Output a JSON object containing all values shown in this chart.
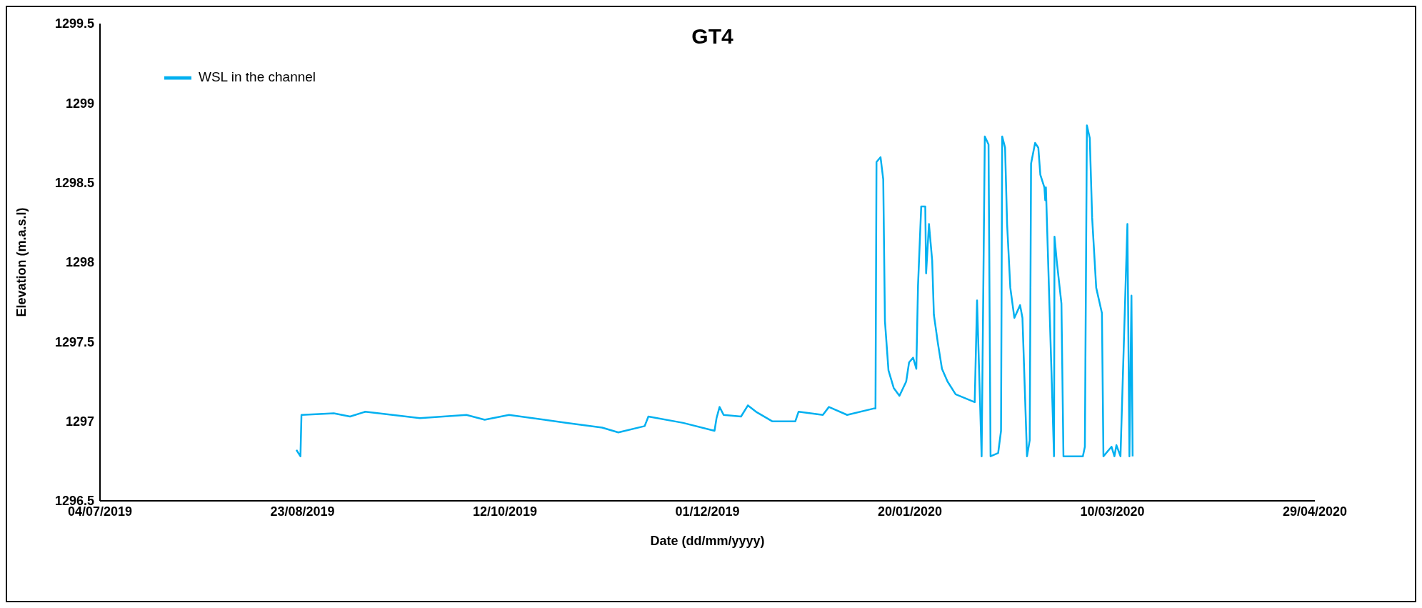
{
  "chart_data": {
    "type": "line",
    "title": "GT4",
    "xlabel": "Date (dd/mm/yyyy)",
    "ylabel": "Elevation (m.a.s.l)",
    "xlim": [
      "2019-07-04",
      "2020-04-29"
    ],
    "xticks": [
      {
        "value": "2019-07-04",
        "label": "04/07/2019"
      },
      {
        "value": "2019-08-23",
        "label": "23/08/2019"
      },
      {
        "value": "2019-10-12",
        "label": "12/10/2019"
      },
      {
        "value": "2019-12-01",
        "label": "01/12/2019"
      },
      {
        "value": "2020-01-20",
        "label": "20/01/2020"
      },
      {
        "value": "2020-03-10",
        "label": "10/03/2020"
      },
      {
        "value": "2020-04-29",
        "label": "29/04/2020"
      }
    ],
    "ylim": [
      1296.5,
      1299.5
    ],
    "yticks": [
      1296.5,
      1297,
      1297.5,
      1298,
      1298.5,
      1299,
      1299.5
    ],
    "grid": false,
    "legend": "top left",
    "marker": "none",
    "line_style": "solid",
    "series": [
      {
        "name": "WSL in the channel",
        "color": "#00b0f0",
        "x": [
          "2019-08-21T12:00",
          "2019-08-22T12:00",
          "2019-08-22T18:00",
          "2019-08-30T18:00",
          "2019-09-03T18:00",
          "2019-09-07T12:00",
          "2019-09-21",
          "2019-10-02T12:00",
          "2019-10-07",
          "2019-10-13",
          "2019-10-27T08:00",
          "2019-11-05",
          "2019-11-09",
          "2019-11-15T12:00",
          "2019-11-16T10:00",
          "2019-11-25",
          "2019-12-02T18:00",
          "2019-12-03T06:00",
          "2019-12-04",
          "2019-12-05",
          "2019-12-09T07:00",
          "2019-12-11",
          "2019-12-13",
          "2019-12-17",
          "2019-12-22T17:00",
          "2019-12-23T12:00",
          "2019-12-29T12:00",
          "2019-12-31",
          "2020-01-04T12:00",
          "2020-01-11",
          "2020-01-11T12:00",
          "2020-01-11T18:00",
          "2020-01-12T18:00",
          "2020-01-13T10:00",
          "2020-01-13T20:00",
          "2020-01-14T17:00",
          "2020-01-16",
          "2020-01-17T10:00",
          "2020-01-19T02:00",
          "2020-01-19T19:00",
          "2020-01-20T19:00",
          "2020-01-21T14:00",
          "2020-01-22",
          "2020-01-22T19:00",
          "2020-01-23T19:00",
          "2020-01-24",
          "2020-01-24T17:00",
          "2020-01-25T12:00",
          "2020-01-25T22:00",
          "2020-01-26T22:00",
          "2020-01-27T22:00",
          "2020-01-29T07:00",
          "2020-01-31T07:00",
          "2020-02-05",
          "2020-02-05T14:00",
          "2020-02-06T17:00",
          "2020-02-07T12:00",
          "2020-02-08T10:00",
          "2020-02-08T22:00",
          "2020-02-10T19:00",
          "2020-02-11T12:00",
          "2020-02-11T19:00",
          "2020-02-12T12:00",
          "2020-02-13",
          "2020-02-13T19:00",
          "2020-02-14T19:00",
          "2020-02-16T05:00",
          "2020-02-16T19:00",
          "2020-02-17T22:00",
          "2020-02-18T14:00",
          "2020-02-18T22:00",
          "2020-02-19T22:00",
          "2020-02-20T17:00",
          "2020-02-21T05:00",
          "2020-02-22T05:00",
          "2020-02-22T10:00",
          "2020-02-22T14:00",
          "2020-02-24T14:00",
          "2020-02-24T17:00",
          "2020-02-25T07:00",
          "2020-02-26T10:00",
          "2020-02-26T22:00",
          "2020-03-02T17:00",
          "2020-03-03T05:00",
          "2020-03-03T17:00",
          "2020-03-04T10:00",
          "2020-03-05",
          "2020-03-06",
          "2020-03-07T10:00",
          "2020-03-07T19:00",
          "2020-03-09T19:00",
          "2020-03-10T12:00",
          "2020-03-11",
          "2020-03-12",
          "2020-03-13T17:00",
          "2020-03-14T05:00",
          "2020-03-14T17:00",
          "2020-03-15"
        ],
        "values": [
          1296.82,
          1296.78,
          1297.04,
          1297.05,
          1297.03,
          1297.06,
          1297.02,
          1297.04,
          1297.01,
          1297.04,
          1296.99,
          1296.96,
          1296.93,
          1296.97,
          1297.03,
          1296.99,
          1296.94,
          1297.02,
          1297.09,
          1297.04,
          1297.03,
          1297.1,
          1297.06,
          1297.0,
          1297.0,
          1297.06,
          1297.04,
          1297.09,
          1297.04,
          1297.08,
          1297.08,
          1298.63,
          1298.66,
          1298.52,
          1297.63,
          1297.32,
          1297.21,
          1297.16,
          1297.25,
          1297.37,
          1297.4,
          1297.33,
          1297.85,
          1298.35,
          1298.35,
          1297.93,
          1298.24,
          1298.01,
          1297.67,
          1297.49,
          1297.33,
          1297.25,
          1297.17,
          1297.12,
          1297.76,
          1296.78,
          1298.79,
          1298.74,
          1296.78,
          1296.8,
          1296.94,
          1298.79,
          1298.72,
          1298.24,
          1297.84,
          1297.65,
          1297.73,
          1297.65,
          1296.78,
          1296.88,
          1298.62,
          1298.75,
          1298.72,
          1298.55,
          1298.47,
          1298.39,
          1298.47,
          1296.78,
          1298.16,
          1298.0,
          1297.74,
          1296.78,
          1296.78,
          1296.84,
          1298.86,
          1298.78,
          1298.28,
          1297.84,
          1297.68,
          1296.78,
          1296.84,
          1296.78,
          1296.85,
          1296.78,
          1298.24,
          1296.78,
          1297.79,
          1296.78
        ]
      }
    ]
  }
}
